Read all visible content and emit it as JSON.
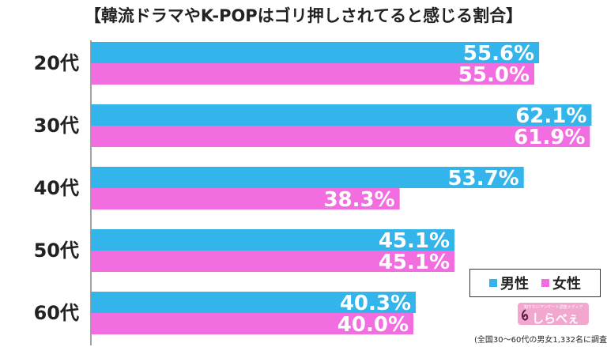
{
  "title": "【韓流ドラマやK-POPはゴリ押しされてると感じる割合】",
  "legend": {
    "male": "男性",
    "female": "女性"
  },
  "logo": {
    "tagline": "知りたいアンケート調査メディア",
    "text": "しらべぇ"
  },
  "note": "(全国30〜60代の男女1,332名に調査)",
  "colors": {
    "male": "#33b4ea",
    "female": "#f26ee0",
    "label": "#ffffff",
    "axis": "#444444"
  },
  "chart_data": {
    "type": "bar",
    "orientation": "horizontal",
    "categories": [
      "20代",
      "30代",
      "40代",
      "50代",
      "60代"
    ],
    "series": [
      {
        "name": "男性",
        "values": [
          55.6,
          62.1,
          53.7,
          45.1,
          40.3
        ]
      },
      {
        "name": "女性",
        "values": [
          55.0,
          61.9,
          38.3,
          45.1,
          40.0
        ]
      }
    ],
    "data_labels": [
      [
        "55.6%",
        "62.1%",
        "53.7%",
        "45.1%",
        "40.3%"
      ],
      [
        "55.0%",
        "61.9%",
        "38.3%",
        "45.1%",
        "40.0%"
      ]
    ],
    "xlim": [
      0,
      100
    ],
    "legend_position": "bottom-right",
    "grid": false
  }
}
